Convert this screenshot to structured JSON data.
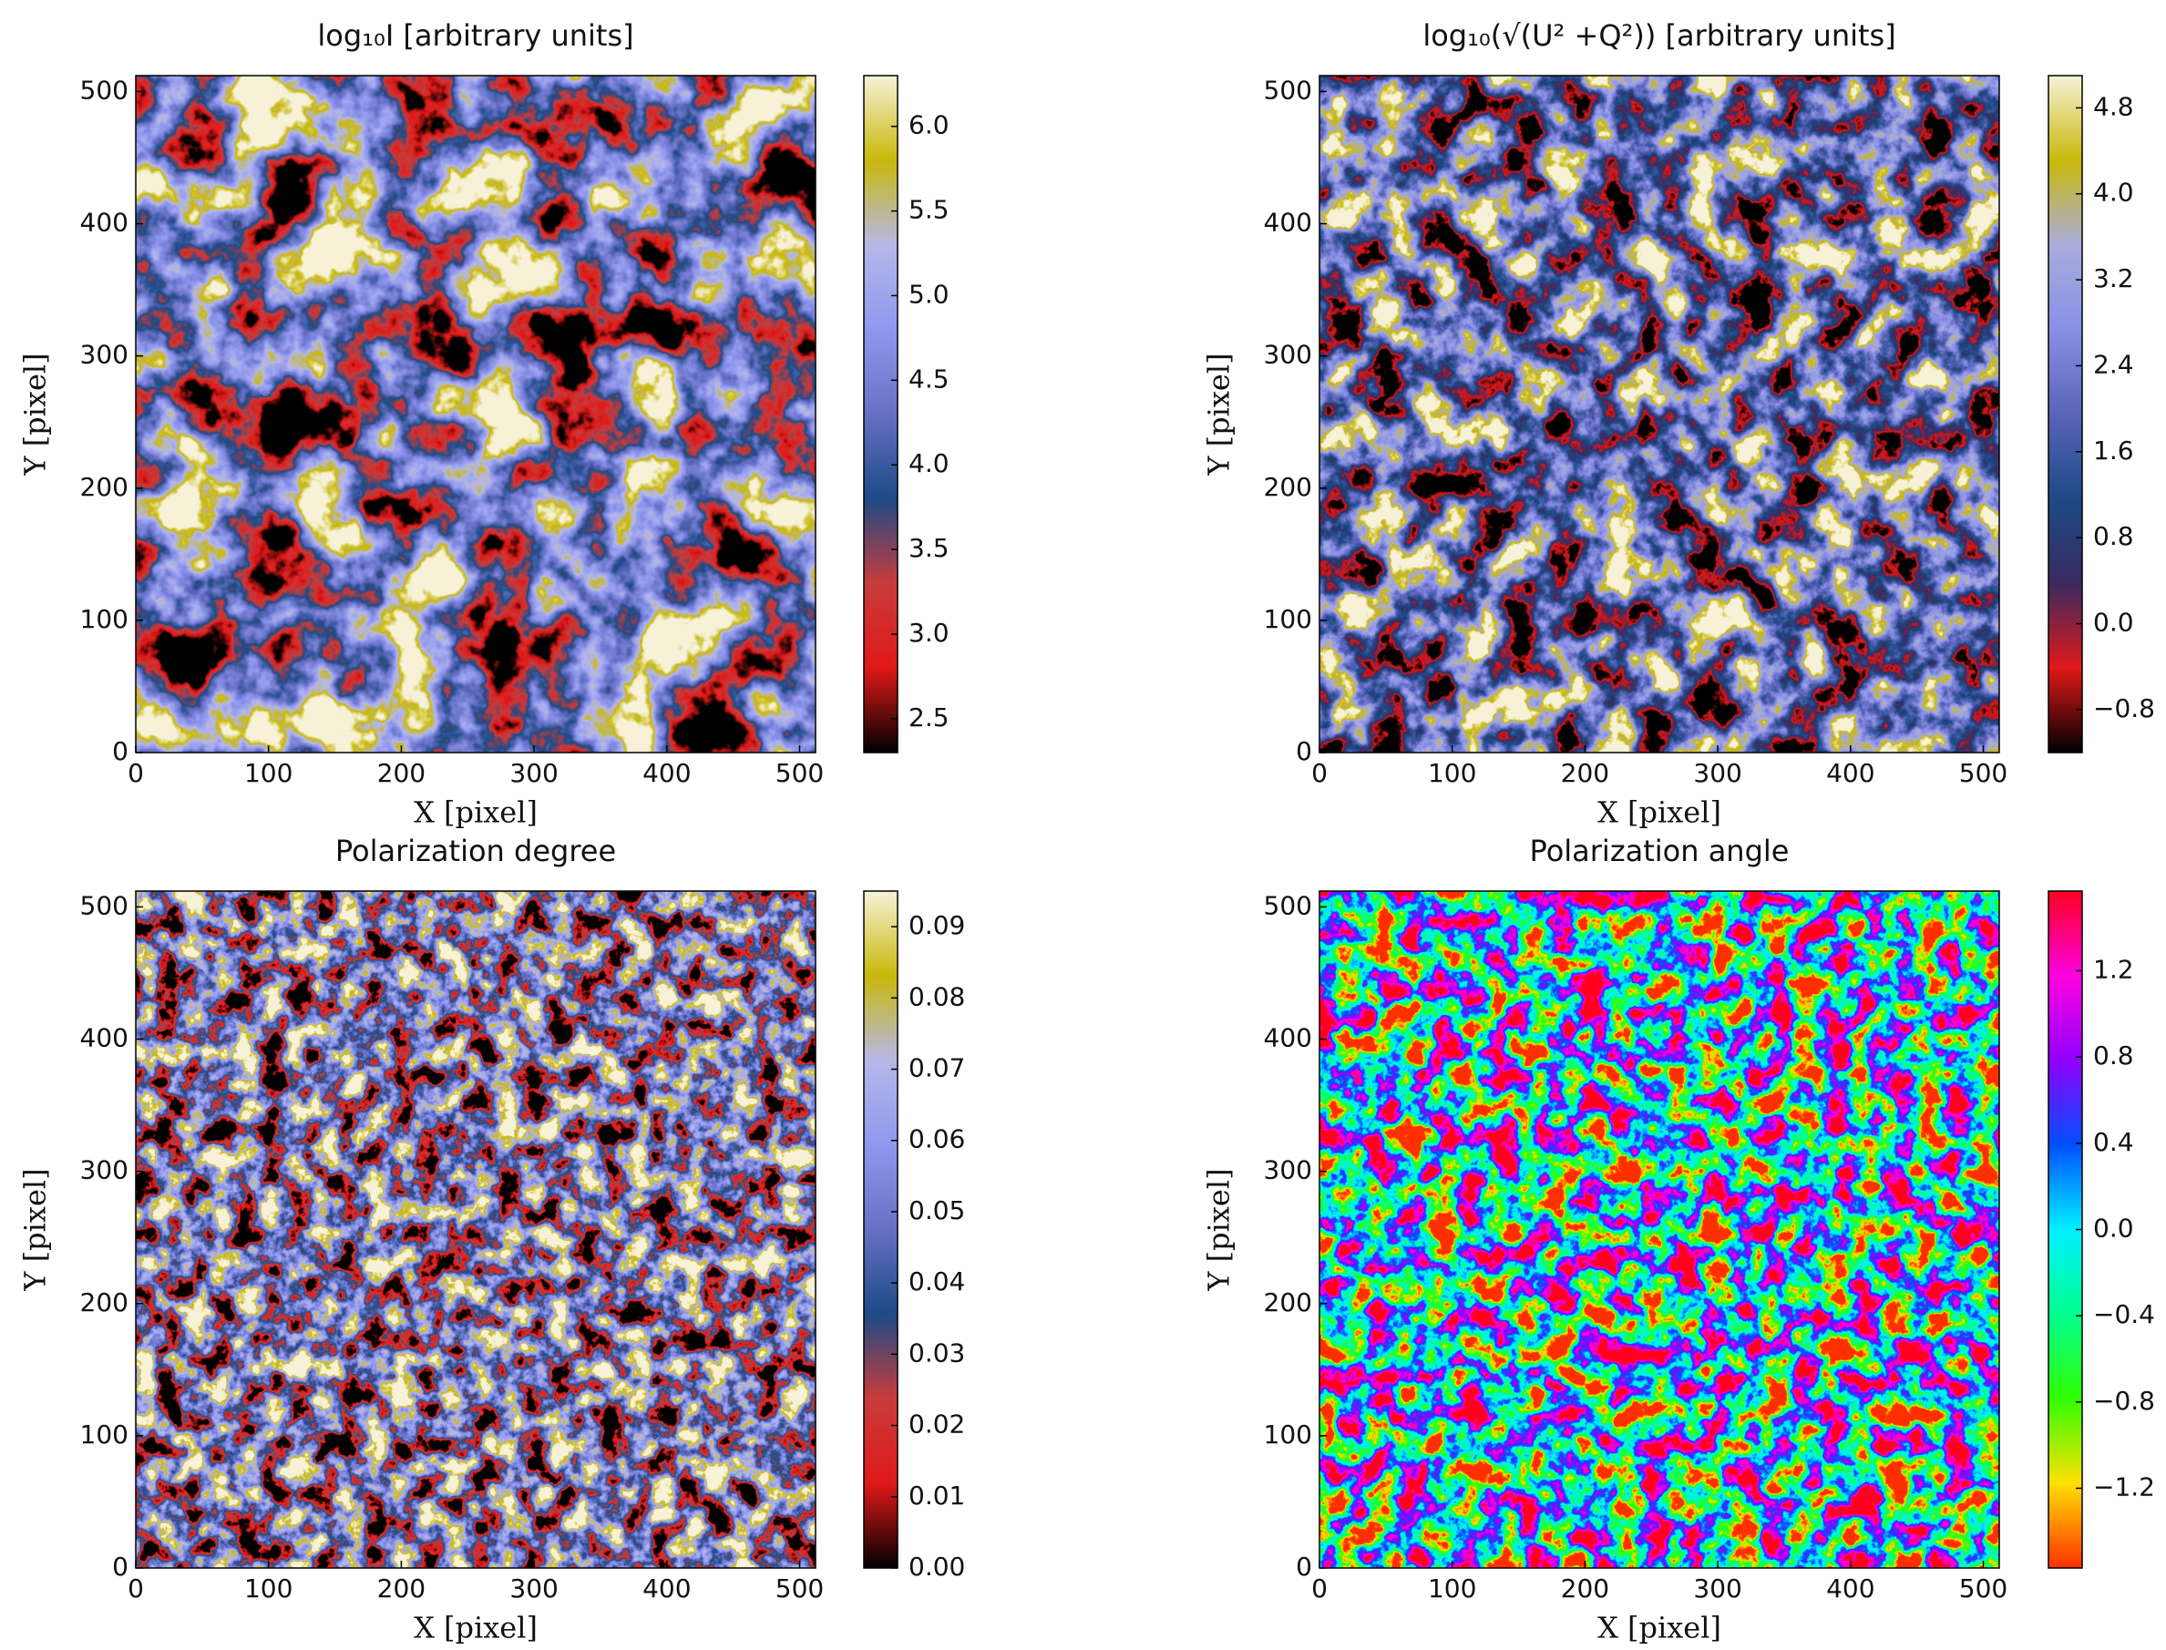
{
  "chart_data": [
    {
      "type": "image",
      "title": "log₁₀I [arbitrary units]",
      "xlabel": "X [pixel]",
      "ylabel": "Y [pixel]",
      "xlim": [
        0,
        512
      ],
      "ylim": [
        0,
        512
      ],
      "xticks": [
        0,
        100,
        200,
        300,
        400,
        500
      ],
      "yticks": [
        0,
        100,
        200,
        300,
        400,
        500
      ],
      "colorbar": {
        "lim": [
          2.3,
          6.3
        ],
        "ticks": [
          2.5,
          {
            "value": 3,
            "label": "3.0"
          },
          3.5,
          {
            "value": 4,
            "label": "4.0"
          },
          4.5,
          {
            "value": 5,
            "label": "5.0"
          },
          5.5,
          {
            "value": 6,
            "label": "6.0"
          }
        ],
        "colors": [
          "#000000",
          "#e01818",
          "#c83c3c",
          "#1d4a86",
          "#6670c4",
          "#8f98ee",
          "#b6b8e8",
          "#c9b80a",
          "#f6f2d8"
        ]
      }
    },
    {
      "type": "image",
      "title": "log₁₀(√(U² +Q²)) [arbitrary units]",
      "xlabel": "X [pixel]",
      "ylabel": "Y [pixel]",
      "xlim": [
        0,
        512
      ],
      "ylim": [
        0,
        512
      ],
      "xticks": [
        0,
        100,
        200,
        300,
        400,
        500
      ],
      "yticks": [
        0,
        100,
        200,
        300,
        400,
        500
      ],
      "colorbar": {
        "lim": [
          -1.2,
          5.1
        ],
        "ticks": [
          {
            "value": -0.8,
            "label": "−0.8"
          },
          {
            "value": 0,
            "label": "0.0"
          },
          0.8,
          1.6,
          2.4,
          3.2,
          {
            "value": 4,
            "label": "4.0"
          },
          4.8
        ],
        "colors": [
          "#000000",
          "#e01818",
          "#3a2a60",
          "#1d4a86",
          "#5a64b8",
          "#8890e6",
          "#a9acdc",
          "#c9b80a",
          "#f6f2d8"
        ]
      }
    },
    {
      "type": "image",
      "title": "Polarization degree",
      "xlabel": "X [pixel]",
      "ylabel": "Y [pixel]",
      "xlim": [
        0,
        512
      ],
      "ylim": [
        0,
        512
      ],
      "xticks": [
        0,
        100,
        200,
        300,
        400,
        500
      ],
      "yticks": [
        0,
        100,
        200,
        300,
        400,
        500
      ],
      "colorbar": {
        "lim": [
          0,
          0.095
        ],
        "ticks": [
          {
            "value": 0,
            "label": "0.00"
          },
          0.01,
          0.02,
          0.03,
          0.04,
          0.05,
          0.06,
          0.07,
          0.08,
          0.09
        ],
        "colors": [
          "#000000",
          "#e01818",
          "#c83c3c",
          "#1d4a86",
          "#6670c4",
          "#8f98ee",
          "#b6b8e8",
          "#c9b80a",
          "#f6f2d8"
        ]
      }
    },
    {
      "type": "image",
      "title": "Polarization angle",
      "xlabel": "X [pixel]",
      "ylabel": "Y [pixel]",
      "xlim": [
        0,
        512
      ],
      "ylim": [
        0,
        512
      ],
      "xticks": [
        0,
        100,
        200,
        300,
        400,
        500
      ],
      "yticks": [
        0,
        100,
        200,
        300,
        400,
        500
      ],
      "colorbar": {
        "lim": [
          -1.57,
          1.57
        ],
        "ticks": [
          {
            "value": -1.2,
            "label": "−1.2"
          },
          {
            "value": -0.8,
            "label": "−0.8"
          },
          {
            "value": -0.4,
            "label": "−0.4"
          },
          {
            "value": 0,
            "label": "0.0"
          },
          0.4,
          0.8,
          1.2
        ],
        "colors": [
          "#ff3000",
          "#ffe000",
          "#30ff00",
          "#00ff90",
          "#00f0ff",
          "#0050ff",
          "#9000ff",
          "#ff00e0",
          "#ff0020"
        ]
      }
    }
  ]
}
